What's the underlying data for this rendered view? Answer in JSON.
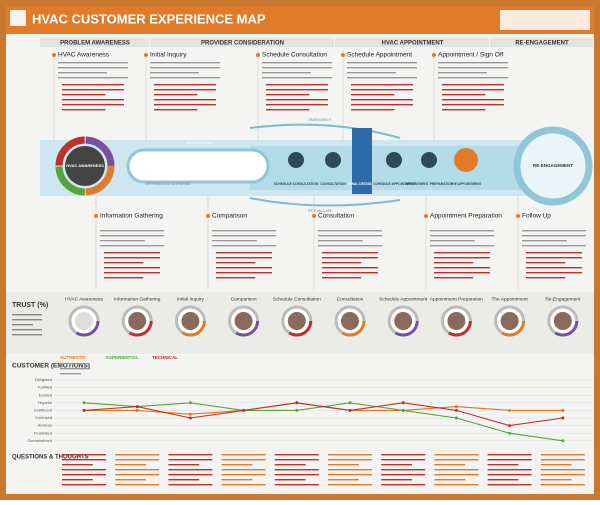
{
  "header": {
    "title": "HVAC CUSTOMER EXPERIENCE MAP"
  },
  "phases": [
    "PROBLEM AWARENESS",
    "PROVIDER CONSIDERATION",
    "HVAC APPOINTMENT",
    "RE-ENGAGEMENT"
  ],
  "top_stages": [
    "HVAC Awareness",
    "Initial Inquiry",
    "Schedule Consultation",
    "Schedule Appointment",
    "Appointment / Sign Off"
  ],
  "bottom_stages": [
    "Information Gathering",
    "Comparison",
    "Consultation",
    "Appointment Preparation",
    "Follow Up"
  ],
  "journey": {
    "start": "HVAC AWARENESS",
    "end": "RE-ENGAGEMENT",
    "steps": [
      "SCHEDULE CONSULTATION",
      "CONSULTATION",
      "FINAL DECISION",
      "SCHEDULE APPOINTMENT",
      "APPOINTMENT PREPARATION",
      "THE APPOINTMENT"
    ],
    "paths": [
      "INITIAL INQUIRY",
      "INFORMATION GATHERING",
      "EMERGENCY",
      "RE-EVALUATE"
    ]
  },
  "trust": {
    "title": "TRUST (%)",
    "stages": [
      "HVAC Awareness",
      "Information Gathering",
      "Initial Inquiry",
      "Comparison",
      "Schedule Consultation",
      "Consultation",
      "Schedule Appointment",
      "Appointment Preparation",
      "The Appointment",
      "Re-Engagement"
    ]
  },
  "emotions": {
    "title": "CUSTOMER (EMOTIONS)",
    "levels": [
      "Delighted",
      "Fulfilled",
      "Excited",
      "Hopeful",
      "Indifferent",
      "Confused",
      "Anxious",
      "Frustrated",
      "Overwhelmed"
    ],
    "series": [
      {
        "name": "AUTHENTIC",
        "color": "#e8731f",
        "values": [
          4,
          4,
          3.5,
          4,
          5,
          4,
          4,
          4.5,
          4,
          4
        ]
      },
      {
        "name": "EXPERIENTIAL",
        "color": "#5aa33c",
        "values": [
          5,
          4.5,
          5,
          4,
          4,
          5,
          4,
          3,
          1,
          0
        ]
      },
      {
        "name": "TECHNICAL",
        "color": "#c0302a",
        "values": [
          4,
          4.5,
          3,
          4,
          5,
          4,
          5,
          4,
          2,
          3
        ]
      }
    ]
  },
  "questions": {
    "title": "QUESTIONS & THOUGHTS"
  }
}
